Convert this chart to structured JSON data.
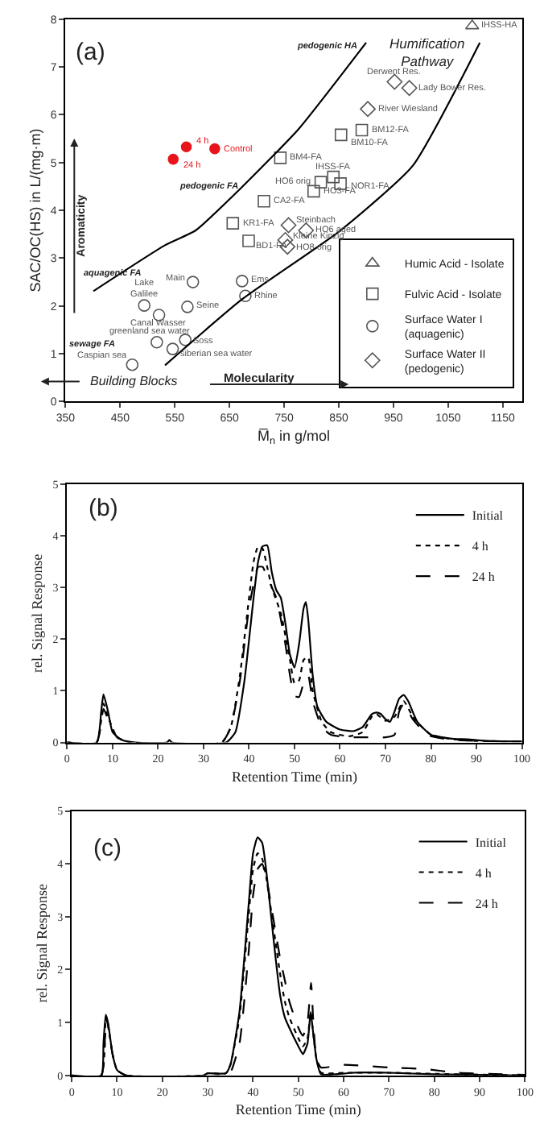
{
  "chart_data": [
    {
      "type": "scatter",
      "xlabel": "M̅$_{n}$ in g/mol",
      "ylabel": "SAC/OC(HS) in L/(mg·m)",
      "xlim": [
        350,
        1185
      ],
      "xticks": [
        350,
        450,
        550,
        650,
        750,
        850,
        950,
        1050,
        1150
      ],
      "ylim": [
        0,
        8
      ],
      "yticks": [
        0,
        1,
        2,
        3,
        4,
        5,
        6,
        7,
        8
      ],
      "legend": "bottom right",
      "series": [
        {
          "name": "Humic Acid - Isolate",
          "marker": "triangle",
          "color": "#555555",
          "x": [
            1094
          ],
          "values": [
            7.86
          ]
        },
        {
          "name": "Fulvic Acid - Isolate",
          "marker": "square",
          "color": "#555555",
          "x": [
            892,
            854,
            743,
            817,
            840,
            853,
            804,
            713,
            656,
            685
          ],
          "values": [
            5.68,
            5.58,
            5.1,
            4.59,
            4.7,
            4.56,
            4.4,
            4.19,
            3.73,
            3.36
          ]
        },
        {
          "name": "Surface Water I\n(aquagenic)",
          "marker": "circle",
          "color": "#555555",
          "x": [
            583,
            673,
            679,
            494,
            573,
            521,
            517,
            569,
            546,
            472
          ],
          "values": [
            2.5,
            2.52,
            2.21,
            2.01,
            1.98,
            1.81,
            1.24,
            1.29,
            1.1,
            0.77
          ]
        },
        {
          "name": "Surface Water II\n(pedogenic)",
          "marker": "diamond",
          "color": "#555555",
          "x": [
            952,
            979,
            903,
            758,
            790,
            752,
            756
          ],
          "values": [
            6.69,
            6.56,
            6.12,
            3.69,
            3.58,
            3.38,
            3.24
          ]
        },
        {
          "type": "line",
          "color": "#000000",
          "x": [
            401,
            532,
            588,
            673,
            777,
            900
          ],
          "values": [
            2.31,
            3.27,
            3.58,
            4.49,
            5.71,
            7.51
          ]
        },
        {
          "type": "line",
          "color": "#000000",
          "x": [
            532,
            673,
            853,
            985,
            1108
          ],
          "values": [
            0.76,
            2.14,
            3.58,
            4.93,
            7.51
          ]
        },
        {
          "marker": "circle",
          "color": "#e8141b",
          "x": [
            571,
            623,
            547
          ],
          "values": [
            5.33,
            5.29,
            5.07
          ]
        }
      ],
      "annotations": [
        "(a)",
        "pedogenic HA",
        "Humification\nPathway",
        "pedogenic FA",
        "aquagenic FA",
        "sewage FA",
        "Aromaticity",
        "Building Blocks",
        "Molecularity",
        {
          "text": "IHSS-HA",
          "x": 1094,
          "y": 7.86
        },
        {
          "text": "BM12-FA",
          "x": 892,
          "y": 5.68
        },
        {
          "text": "BM10-FA",
          "x": 854,
          "y": 5.58
        },
        {
          "text": "BM4-FA",
          "x": 743,
          "y": 5.1
        },
        {
          "text": "HO6 orig",
          "x": 817,
          "y": 4.59
        },
        {
          "text": "IHSS-FA",
          "x": 840,
          "y": 4.7
        },
        {
          "text": "NOR1-FA",
          "x": 853,
          "y": 4.56
        },
        {
          "text": "HO3-FA",
          "x": 804,
          "y": 4.4
        },
        {
          "text": "CA2-FA",
          "x": 713,
          "y": 4.19
        },
        {
          "text": "KR1-FA",
          "x": 656,
          "y": 3.73
        },
        {
          "text": "BD1-FA",
          "x": 685,
          "y": 3.36
        },
        {
          "text": "Main",
          "x": 583,
          "y": 2.5
        },
        {
          "text": "Ems",
          "x": 673,
          "y": 2.52
        },
        {
          "text": "Rhine",
          "x": 679,
          "y": 2.21
        },
        {
          "text": "Lake\nGalilee",
          "x": 494,
          "y": 2.01
        },
        {
          "text": "Seine",
          "x": 573,
          "y": 1.98
        },
        {
          "text": "Canal Wasser",
          "x": 521,
          "y": 1.81
        },
        {
          "text": "greenland sea water",
          "x": 517,
          "y": 1.24
        },
        {
          "text": "Soss",
          "x": 569,
          "y": 1.29
        },
        {
          "text": "siberian sea water",
          "x": 546,
          "y": 1.1
        },
        {
          "text": "Caspian sea",
          "x": 472,
          "y": 0.77
        },
        {
          "text": "Derwent Res.",
          "x": 952,
          "y": 6.69
        },
        {
          "text": "Lady Bower Res.",
          "x": 979,
          "y": 6.56
        },
        {
          "text": "River Wiesland",
          "x": 903,
          "y": 6.12
        },
        {
          "text": "Steinbach",
          "x": 758,
          "y": 3.69
        },
        {
          "text": "HO6 aged",
          "x": 790,
          "y": 3.58
        },
        {
          "text": "Kleine Kinzig",
          "x": 752,
          "y": 3.38
        },
        {
          "text": "HO8 orig",
          "x": 756,
          "y": 3.24
        },
        {
          "text": "4 h",
          "x": 571,
          "y": 5.33
        },
        {
          "text": "Control",
          "x": 623,
          "y": 5.29
        },
        {
          "text": "24 h",
          "x": 547,
          "y": 5.07
        }
      ]
    },
    {
      "type": "line",
      "xlabel": "Retention Time (min)",
      "ylabel": "rel. Signal Response",
      "xlim": [
        0,
        100
      ],
      "xticks": [
        0,
        10,
        20,
        30,
        40,
        50,
        60,
        70,
        80,
        90,
        100
      ],
      "ylim": [
        0,
        5
      ],
      "yticks": [
        0,
        1,
        2,
        3,
        4,
        5
      ],
      "legend": "top right",
      "annotations": [
        "(b)"
      ],
      "series": [
        {
          "name": "Initial",
          "color": "#000000",
          "line_style": "solid",
          "x": [
            0,
            6.5,
            7.5,
            8,
            9,
            10,
            12,
            15,
            22,
            22.5,
            23,
            35,
            37,
            39,
            41,
            42,
            43,
            44,
            45,
            46,
            47,
            48,
            49,
            50,
            51,
            52,
            52.5,
            53,
            54,
            55,
            57,
            60,
            63,
            65,
            67,
            68,
            69,
            70,
            71,
            72,
            73,
            74,
            75,
            77,
            80,
            85,
            88,
            92,
            100
          ],
          "values": [
            0,
            0,
            0.6,
            0.93,
            0.6,
            0.2,
            0.05,
            0,
            0,
            0.05,
            0,
            0,
            0.2,
            1.2,
            2.8,
            3.5,
            3.8,
            3.82,
            3.3,
            2.95,
            2.8,
            2.3,
            1.7,
            1.45,
            1.9,
            2.6,
            2.72,
            2.4,
            1.3,
            0.7,
            0.4,
            0.25,
            0.22,
            0.3,
            0.55,
            0.58,
            0.55,
            0.45,
            0.4,
            0.6,
            0.85,
            0.92,
            0.8,
            0.4,
            0.15,
            0.07,
            0.06,
            0.03,
            0.02
          ]
        },
        {
          "name": "4 h",
          "color": "#000000",
          "line_style": "dotted",
          "x": [
            0,
            6.5,
            8,
            9,
            11,
            14,
            34,
            36,
            38,
            40,
            41,
            42,
            43,
            44,
            45,
            47,
            49,
            50,
            51,
            52,
            53,
            54,
            56,
            58,
            62,
            65,
            67,
            68,
            70,
            72,
            74,
            76,
            78,
            80,
            85,
            90,
            100
          ],
          "values": [
            0,
            0,
            0.75,
            0.5,
            0.1,
            0,
            0,
            0.3,
            1.3,
            2.8,
            3.5,
            3.8,
            3.75,
            3.4,
            3.0,
            2.5,
            1.6,
            1.15,
            1.2,
            1.6,
            1.65,
            1.0,
            0.4,
            0.2,
            0.12,
            0.2,
            0.5,
            0.55,
            0.42,
            0.5,
            0.8,
            0.5,
            0.3,
            0.15,
            0.06,
            0.03,
            0.02
          ]
        },
        {
          "name": "24 h",
          "color": "#000000",
          "line_style": "dashed",
          "x": [
            0,
            6.5,
            8,
            9,
            11,
            14,
            34,
            36,
            38,
            40,
            42,
            43,
            44,
            46,
            48,
            49,
            50,
            51,
            52,
            53,
            54,
            56,
            58,
            62,
            65,
            70,
            72,
            73,
            74,
            76,
            78,
            80,
            85,
            90,
            100
          ],
          "values": [
            0,
            0,
            0.65,
            0.45,
            0.1,
            0,
            0,
            0.3,
            1.2,
            2.6,
            3.4,
            3.4,
            3.2,
            2.8,
            1.9,
            1.3,
            0.9,
            0.88,
            1.15,
            1.3,
            0.8,
            0.3,
            0.15,
            0.1,
            0.1,
            0.1,
            0.15,
            0.6,
            0.75,
            0.45,
            0.25,
            0.12,
            0.05,
            0.03,
            0.02
          ]
        }
      ]
    },
    {
      "type": "line",
      "xlabel": "Retention Time (min)",
      "ylabel": "rel. Signal Response",
      "xlim": [
        0,
        100
      ],
      "xticks": [
        0,
        10,
        20,
        30,
        40,
        50,
        60,
        70,
        80,
        90,
        100
      ],
      "ylim": [
        0,
        5
      ],
      "yticks": [
        0,
        1,
        2,
        3,
        4,
        5
      ],
      "legend": "top right",
      "annotations": [
        "(c)"
      ],
      "series": [
        {
          "name": "Initial",
          "color": "#000000",
          "line_style": "solid",
          "x": [
            0,
            6.5,
            7,
            7.5,
            8,
            9,
            10,
            12,
            29,
            30,
            34,
            35,
            37,
            39,
            40,
            41,
            42,
            43,
            44,
            45,
            46,
            47,
            48,
            50,
            51,
            52,
            52.7,
            53,
            54,
            55,
            58,
            62,
            70,
            80,
            100
          ],
          "values": [
            0,
            0,
            0.6,
            1.15,
            1.0,
            0.4,
            0.1,
            0,
            0,
            0.04,
            0.04,
            0.2,
            1.2,
            3.2,
            4.2,
            4.5,
            4.4,
            3.8,
            3.0,
            2.2,
            1.5,
            1.1,
            0.9,
            0.55,
            0.4,
            0.6,
            1.2,
            1.0,
            0.3,
            0.02,
            0.02,
            0.05,
            0.05,
            0.02,
            0
          ]
        },
        {
          "name": "4 h",
          "color": "#000000",
          "line_style": "dotted",
          "x": [
            0,
            6.5,
            7.5,
            8,
            9,
            10,
            12,
            29,
            30,
            34,
            35,
            37,
            39,
            40,
            41,
            42,
            43,
            44,
            45,
            46,
            47,
            48,
            50,
            51,
            52,
            52.7,
            53,
            54,
            55,
            60,
            70,
            80,
            100
          ],
          "values": [
            0,
            0,
            1.1,
            0.95,
            0.4,
            0.1,
            0,
            0,
            0.04,
            0.04,
            0.2,
            1.1,
            3.0,
            3.9,
            4.2,
            4.1,
            3.7,
            3.1,
            2.5,
            1.9,
            1.4,
            1.1,
            0.7,
            0.55,
            0.7,
            1.2,
            1.0,
            0.3,
            0.05,
            0.05,
            0.05,
            0.03,
            0
          ]
        },
        {
          "name": "24 h",
          "color": "#000000",
          "line_style": "dashed",
          "x": [
            0,
            6.5,
            7.5,
            8,
            9,
            10,
            12,
            34,
            35,
            37,
            39,
            40,
            41,
            42,
            43,
            44,
            45,
            46,
            47,
            48,
            50,
            51,
            52,
            52.8,
            53.3,
            54,
            55,
            60,
            70,
            78,
            85,
            100
          ],
          "values": [
            0,
            0,
            1.1,
            0.95,
            0.4,
            0.1,
            0,
            0,
            0.05,
            0.6,
            2.3,
            3.4,
            3.9,
            4.0,
            3.7,
            3.2,
            2.7,
            2.2,
            1.8,
            1.4,
            0.9,
            0.75,
            1.0,
            1.75,
            1.0,
            0.3,
            0.15,
            0.2,
            0.15,
            0.12,
            0.05,
            0.01
          ]
        }
      ]
    }
  ]
}
